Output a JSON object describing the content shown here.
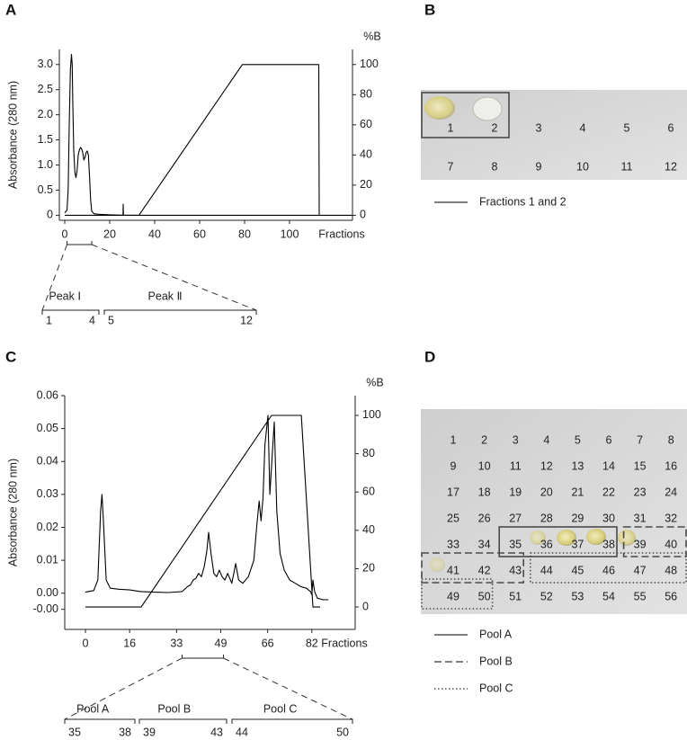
{
  "panel_labels": [
    "A",
    "B",
    "C",
    "D"
  ],
  "chart_data": [
    {
      "type": "line",
      "ylabel": "Absorbance (280 nm)",
      "y2label": "%B",
      "xlabel": "Fractions",
      "xlim": [
        -2.4,
        128
      ],
      "ylim": [
        -0.1,
        3.3
      ],
      "y2lim": [
        -3.33,
        110
      ],
      "xticks": [
        0,
        20,
        40,
        60,
        80,
        100
      ],
      "yticks": [
        0,
        0.5,
        {
          "value": 1,
          "label": "1.0"
        },
        1.5,
        {
          "value": 2,
          "label": "2.0"
        },
        2.5,
        {
          "value": 3,
          "label": "3.0"
        }
      ],
      "y2ticks": [
        0,
        20,
        40,
        60,
        80,
        100
      ],
      "series": [
        {
          "color": "#000000",
          "x": [
            0,
            1,
            1.5,
            2,
            2.5,
            3,
            3.3,
            3.6,
            4,
            4.5,
            5,
            5.5,
            6,
            6.5,
            7,
            7.5,
            8,
            8.5,
            9,
            9.5,
            10,
            10.5,
            11,
            11.5,
            12,
            13,
            15,
            20,
            25.9,
            26,
            26.1,
            30,
            60,
            100,
            113
          ],
          "values": [
            0.05,
            0.1,
            0.5,
            1.8,
            2.9,
            3.2,
            3.0,
            2.2,
            1.3,
            0.85,
            0.75,
            0.9,
            1.2,
            1.3,
            1.35,
            1.32,
            1.25,
            1.1,
            1.15,
            1.25,
            1.28,
            1.2,
            0.8,
            0.3,
            0.08,
            0.03,
            0.02,
            0.01,
            0,
            0.22,
            0,
            0,
            0,
            0,
            0
          ]
        },
        {
          "color": "#000000",
          "axis": "y2",
          "x": [
            0,
            33,
            79,
            113,
            113.2,
            128
          ],
          "values": [
            0,
            0,
            100,
            100,
            0,
            0
          ]
        }
      ],
      "groups": [
        {
          "label": "Peak Ⅰ",
          "first": 1,
          "last": 4
        },
        {
          "label": "Peak Ⅱ",
          "first": 5,
          "last": 12
        }
      ]
    },
    {
      "type": "line",
      "ylabel": "Absorbance (280 nm)",
      "y2label": "%B",
      "xlabel": "Fractions",
      "xlim": [
        -7.5,
        97.7
      ],
      "ylim": [
        -0.011,
        0.06
      ],
      "y2lim": [
        -11.7,
        110.3
      ],
      "xticks": [
        0,
        16,
        33,
        49,
        66,
        82
      ],
      "yticks": [
        {
          "value": -0.0049,
          "label": "-0.00"
        },
        {
          "value": 0,
          "label": "0.00"
        },
        0.01,
        0.02,
        0.03,
        0.04,
        0.05,
        0.06
      ],
      "y2ticks": [
        0,
        20,
        40,
        60,
        80,
        100
      ],
      "series": [
        {
          "color": "#000000",
          "x": [
            0,
            3,
            4.5,
            5.5,
            6,
            6.5,
            7.5,
            9,
            12,
            16,
            20,
            25,
            30,
            35,
            37,
            38,
            39,
            40,
            41,
            42,
            43,
            44,
            44.6,
            45.5,
            46.5,
            47.5,
            48.5,
            49.5,
            50.5,
            51.5,
            53,
            54.4,
            55.5,
            57,
            59,
            61,
            62,
            62.9,
            63.6,
            64.3,
            65,
            66.1,
            66.8,
            67.5,
            68.4,
            69.3,
            70.5,
            72,
            74,
            76,
            78,
            80,
            81.5,
            82,
            82.4,
            83,
            84,
            86,
            88
          ],
          "values": [
            0.0003,
            0.0008,
            0.004,
            0.025,
            0.03,
            0.022,
            0.004,
            0.0015,
            0.0012,
            0.001,
            0.0005,
            0.0003,
            0.0002,
            0.0005,
            0.002,
            0.0025,
            0.004,
            0.0045,
            0.006,
            0.005,
            0.008,
            0.013,
            0.0185,
            0.012,
            0.006,
            0.005,
            0.007,
            0.005,
            0.004,
            0.006,
            0.003,
            0.009,
            0.004,
            0.003,
            0.005,
            0.01,
            0.02,
            0.028,
            0.022,
            0.029,
            0.045,
            0.054,
            0.03,
            0.04,
            0.052,
            0.025,
            0.012,
            0.007,
            0.004,
            0.003,
            0.002,
            0.0015,
            0.0005,
            -0.0005,
            0.004,
            0.0005,
            -0.0015,
            -0.002,
            -0.002
          ]
        },
        {
          "color": "#000000",
          "axis": "y2",
          "x": [
            0,
            20.2,
            67.4,
            78.2,
            82.4,
            85
          ],
          "values": [
            0,
            0,
            100,
            100,
            0,
            0
          ]
        }
      ],
      "groups": [
        {
          "label": "Pool A",
          "first": 35,
          "last": 38
        },
        {
          "label": "Pool B",
          "first": 39,
          "last": 43
        },
        {
          "label": "Pool C",
          "first": 44,
          "last": 50
        }
      ]
    }
  ],
  "plates": [
    {
      "rows": [
        [
          1,
          2,
          3,
          4,
          5,
          6
        ],
        [
          7,
          8,
          9,
          10,
          11,
          12
        ]
      ],
      "pools": [
        {
          "name": "Fractions 1 and 2",
          "from": 1,
          "to": 2,
          "dash": "solid"
        }
      ]
    },
    {
      "rows": [
        [
          1,
          2,
          3,
          4,
          5,
          6,
          7,
          8
        ],
        [
          9,
          10,
          11,
          12,
          13,
          14,
          15,
          16
        ],
        [
          17,
          18,
          19,
          20,
          21,
          22,
          23,
          24
        ],
        [
          25,
          26,
          27,
          28,
          29,
          30,
          31,
          32
        ],
        [
          33,
          34,
          35,
          36,
          37,
          38,
          39,
          40
        ],
        [
          41,
          42,
          43,
          44,
          45,
          46,
          47,
          48
        ],
        [
          49,
          50,
          51,
          52,
          53,
          54,
          55,
          56
        ]
      ],
      "pools": [
        {
          "name": "Pool A",
          "from": 35,
          "to": 38,
          "dash": "solid"
        },
        {
          "name": "Pool B",
          "from": 39,
          "to": 43,
          "dash": "dashed"
        },
        {
          "name": "Pool C",
          "from": 44,
          "to": 50,
          "dash": "dotted"
        }
      ]
    }
  ]
}
